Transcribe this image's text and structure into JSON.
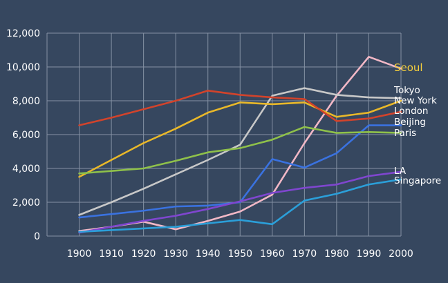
{
  "chart_data": {
    "type": "line",
    "title": "",
    "xlabel": "",
    "ylabel": "",
    "x": [
      1900,
      1910,
      1920,
      1930,
      1940,
      1950,
      1960,
      1970,
      1980,
      1990,
      2000
    ],
    "xlim": [
      1890,
      2000
    ],
    "ylim": [
      0,
      12000
    ],
    "yticks": [
      "0",
      "2,000",
      "4,000",
      "6,000",
      "8,000",
      "10,000",
      "12,000"
    ],
    "xticks": [
      "1900",
      "1910",
      "1920",
      "1930",
      "1940",
      "1950",
      "1960",
      "1970",
      "1980",
      "1990",
      "2000"
    ],
    "grid": true,
    "legend": "end-of-line labels",
    "series": [
      {
        "name": "Seoul",
        "color": "#f2b8c6",
        "label_color": "#f6cf3c",
        "values": [
          300,
          550,
          850,
          400,
          900,
          1450,
          2450,
          5500,
          8300,
          10600,
          9900
        ]
      },
      {
        "name": "Tokyo",
        "color": "#c8c8c8",
        "values": [
          1250,
          2000,
          2800,
          3650,
          4500,
          5400,
          8300,
          8750,
          8350,
          8200,
          8150
        ]
      },
      {
        "name": "New York",
        "color": "#e9b829",
        "values": [
          3500,
          4500,
          5500,
          6350,
          7300,
          7900,
          7800,
          7900,
          7050,
          7300,
          8000
        ]
      },
      {
        "name": "London",
        "color": "#d2432b",
        "values": [
          6550,
          7000,
          7500,
          8000,
          8600,
          8350,
          8200,
          8100,
          6800,
          6950,
          7350
        ]
      },
      {
        "name": "Beijing",
        "color": "#3a72e0",
        "values": [
          1100,
          1300,
          1500,
          1750,
          1800,
          2000,
          4550,
          4050,
          4900,
          6550,
          6550
        ]
      },
      {
        "name": "Paris",
        "color": "#8fc14a",
        "values": [
          3700,
          3850,
          4000,
          4450,
          4950,
          5200,
          5700,
          6450,
          6100,
          6150,
          6100
        ]
      },
      {
        "name": "LA",
        "color": "#7f46cf",
        "values": [
          200,
          550,
          900,
          1200,
          1600,
          2050,
          2550,
          2850,
          3050,
          3550,
          3800
        ]
      },
      {
        "name": "Singapore",
        "color": "#2b9fd9",
        "values": [
          250,
          350,
          450,
          550,
          750,
          950,
          700,
          2100,
          2500,
          3050,
          3350
        ]
      }
    ]
  }
}
